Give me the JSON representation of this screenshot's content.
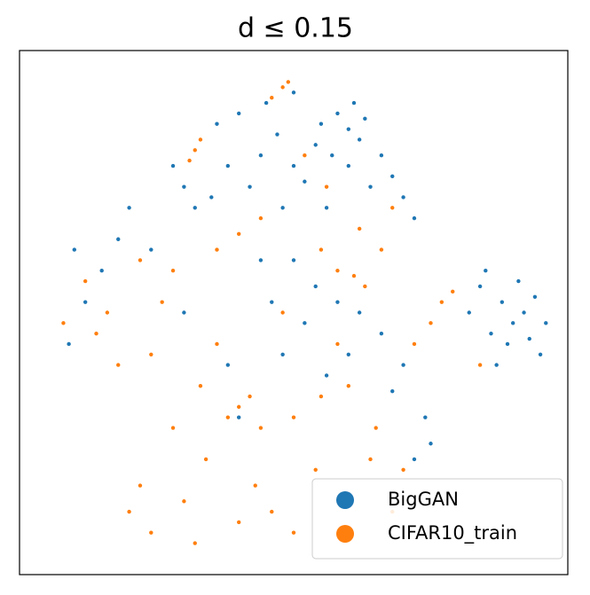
{
  "chart_data": {
    "type": "scatter",
    "title": "d ≤ 0.15",
    "xlim": [
      0,
      100
    ],
    "ylim": [
      0,
      100
    ],
    "legend": "lower right",
    "series": [
      {
        "name": "BigGAN",
        "color": "#1f77b4",
        "x": [
          58,
          60,
          62,
          55,
          57,
          63,
          61,
          54,
          50,
          47,
          44,
          52,
          66,
          68,
          64,
          70,
          72,
          56,
          48,
          42,
          38,
          35,
          32,
          30,
          28,
          36,
          40,
          45,
          50,
          60,
          84,
          88,
          90,
          92,
          94,
          86,
          89,
          93,
          96,
          82,
          85,
          91,
          87,
          95,
          50,
          54,
          58,
          62,
          66,
          60,
          52,
          46,
          44,
          70,
          74,
          75,
          72,
          68,
          56,
          48,
          15,
          18,
          12,
          9,
          20,
          24,
          10,
          30,
          38,
          40
        ],
        "values": [
          88,
          85,
          83,
          86,
          80,
          87,
          90,
          82,
          78,
          84,
          80,
          75,
          80,
          76,
          74,
          72,
          68,
          70,
          70,
          74,
          78,
          72,
          70,
          74,
          78,
          86,
          88,
          90,
          92,
          78,
          55,
          52,
          48,
          50,
          53,
          46,
          44,
          45,
          48,
          50,
          58,
          56,
          40,
          42,
          60,
          55,
          52,
          50,
          46,
          42,
          48,
          52,
          60,
          40,
          30,
          25,
          22,
          35,
          38,
          42,
          58,
          64,
          52,
          44,
          70,
          62,
          62,
          50,
          40,
          30
        ]
      },
      {
        "name": "CIFAR10_train",
        "color": "#ff7f0e",
        "x": [
          32,
          33,
          31,
          48,
          49,
          46,
          40,
          44,
          55,
          58,
          61,
          63,
          77,
          79,
          75,
          40,
          42,
          38,
          44,
          50,
          55,
          60,
          65,
          70,
          43,
          46,
          40,
          22,
          24,
          20,
          30,
          34,
          28,
          33,
          36,
          16,
          14,
          18,
          12,
          8,
          24,
          26,
          22,
          28,
          62,
          66,
          68,
          52,
          56,
          36,
          48,
          58,
          64,
          68,
          54,
          50,
          32,
          60,
          72,
          84
        ],
        "values": [
          81,
          83,
          79,
          93,
          94,
          91,
          65,
          68,
          62,
          58,
          57,
          55,
          52,
          54,
          48,
          32,
          34,
          30,
          28,
          30,
          34,
          36,
          28,
          20,
          17,
          12,
          10,
          17,
          8,
          12,
          14,
          22,
          28,
          36,
          44,
          50,
          46,
          40,
          56,
          48,
          42,
          52,
          60,
          58,
          66,
          62,
          70,
          80,
          74,
          62,
          50,
          44,
          22,
          12,
          20,
          8,
          6,
          14,
          44,
          40
        ]
      }
    ]
  }
}
